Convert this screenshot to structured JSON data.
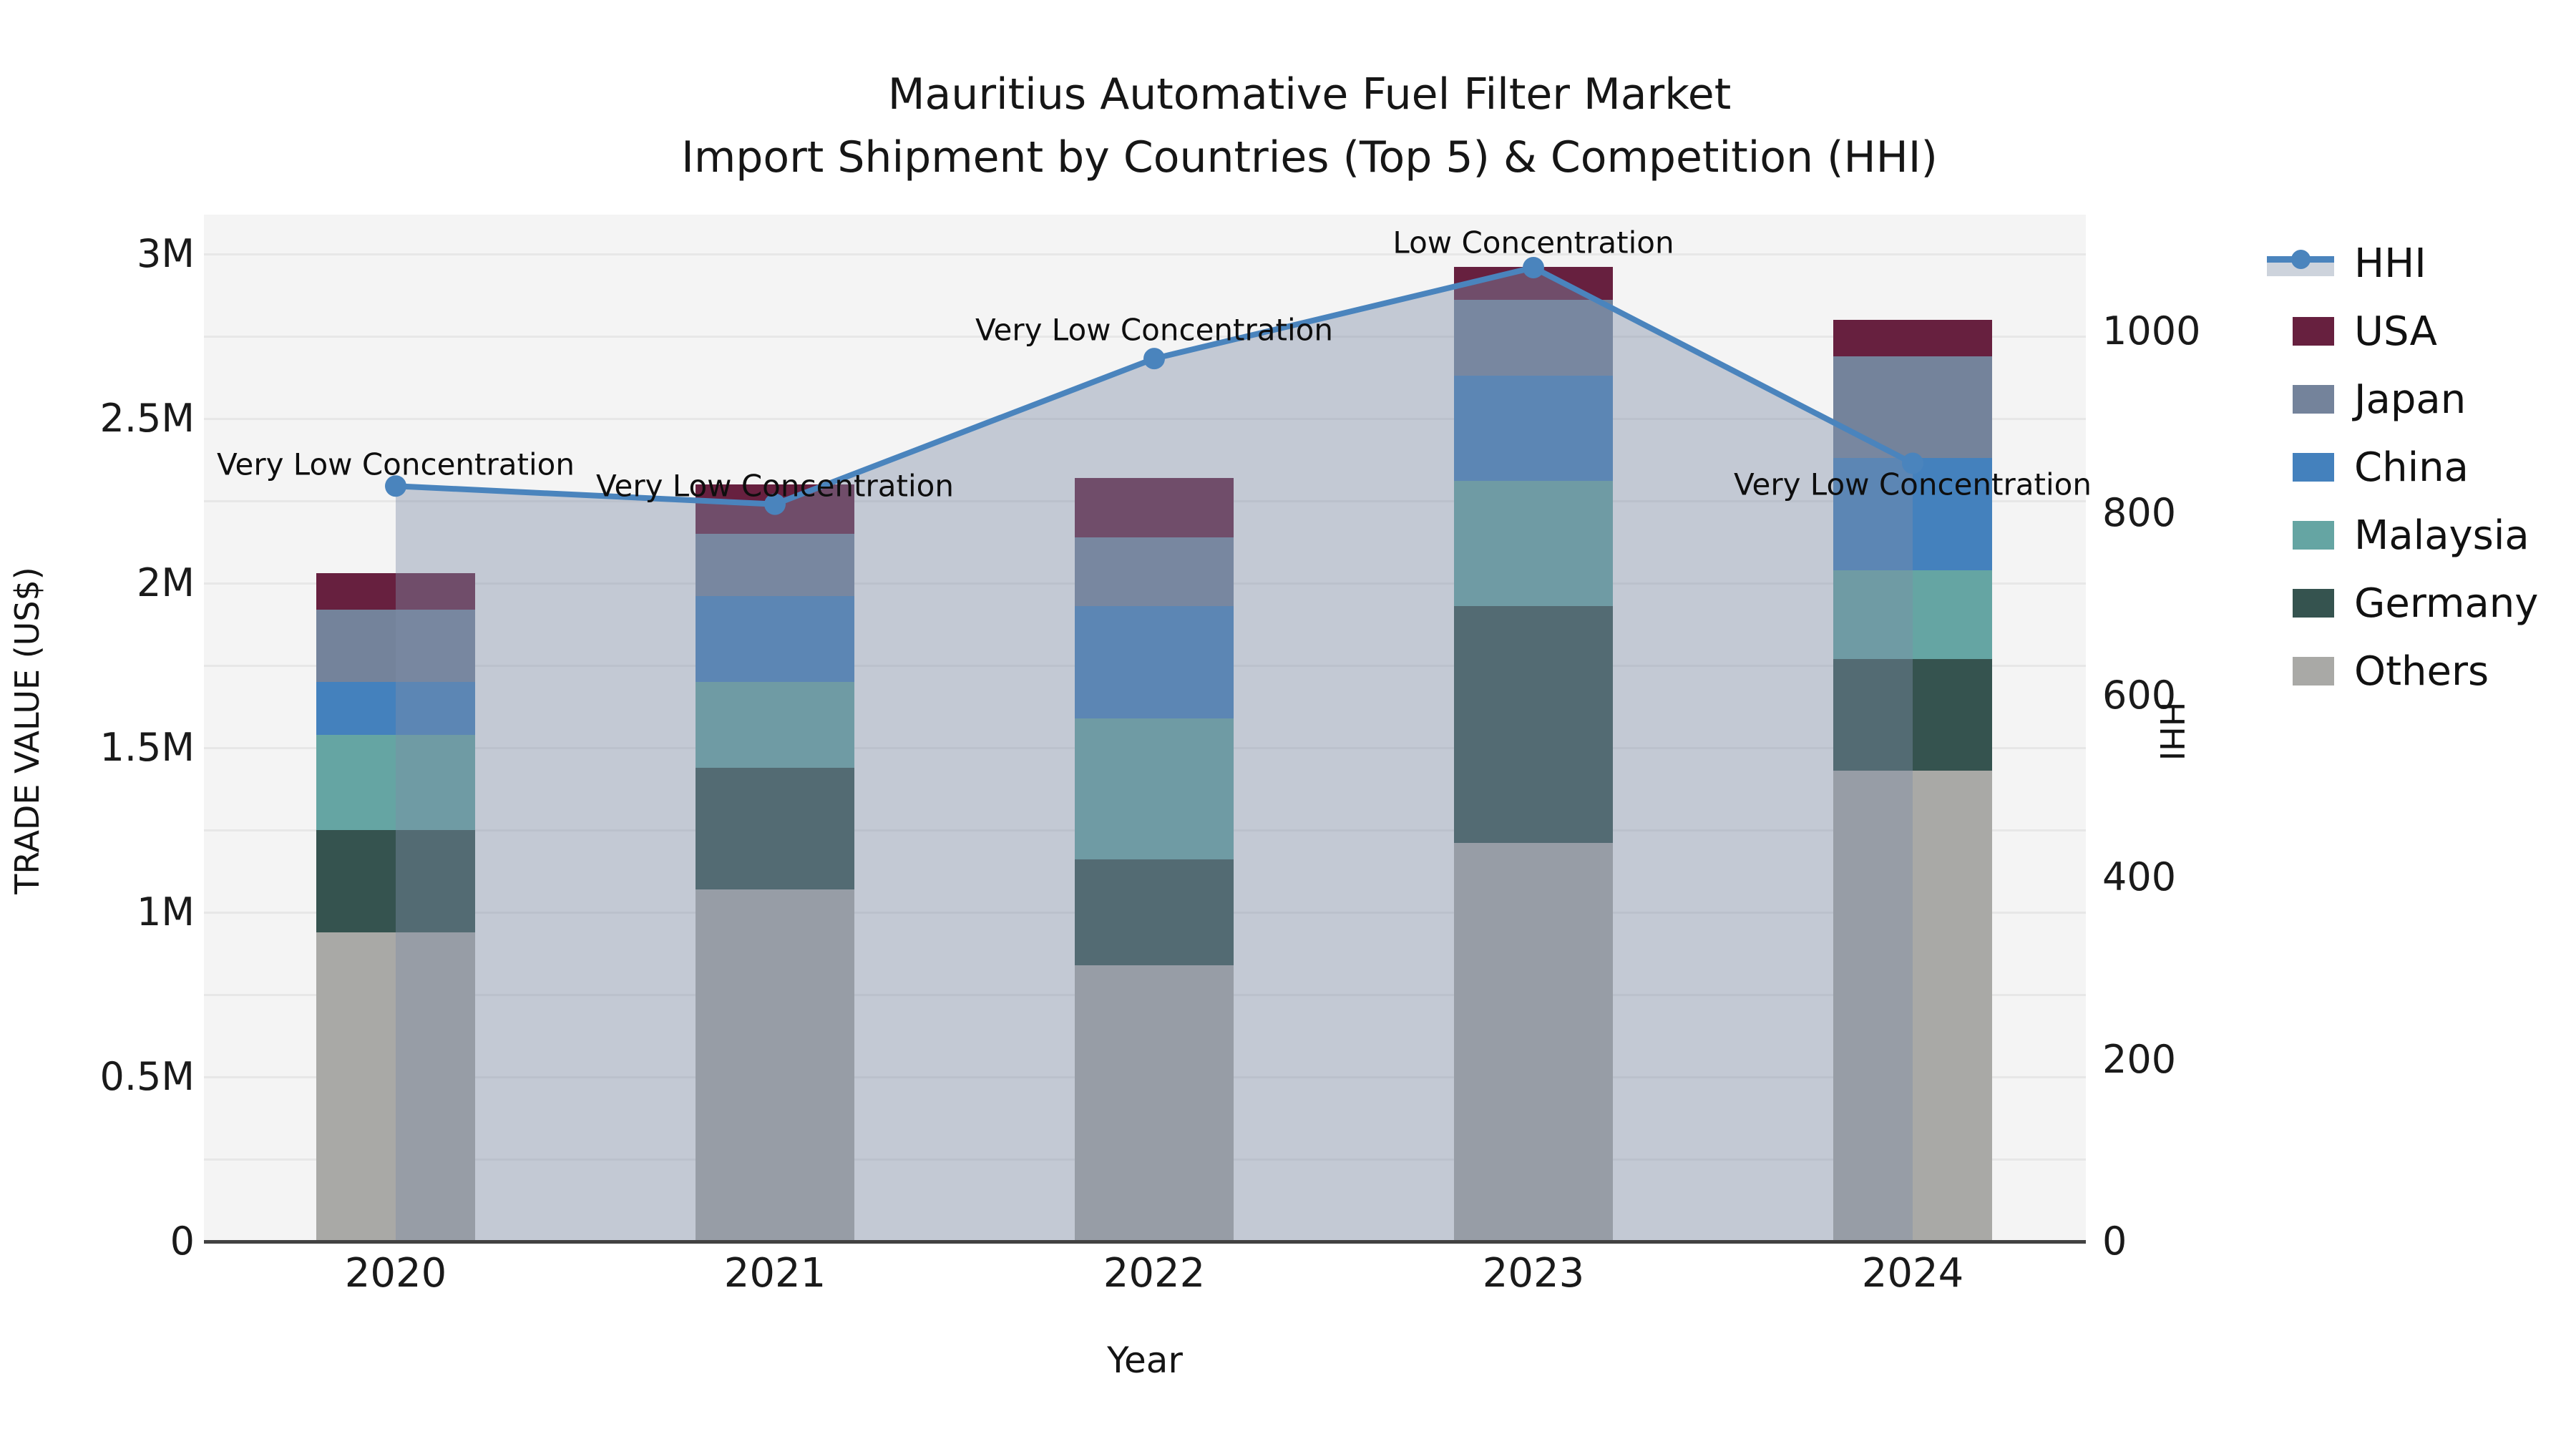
{
  "title": {
    "line1": "Mauritius Automative Fuel Filter Market",
    "line2": "Import Shipment by Countries (Top 5) & Competition (HHI)"
  },
  "axes": {
    "x": {
      "title": "Year"
    },
    "y_left": {
      "title": "TRADE VALUE (US$)",
      "tick_labels": [
        "0",
        "0.5M",
        "1M",
        "1.5M",
        "2M",
        "2.5M",
        "3M"
      ],
      "tick_values": [
        0,
        0.5,
        1,
        1.5,
        2,
        2.5,
        3
      ]
    },
    "y_right": {
      "title": "HHI",
      "tick_labels": [
        "0",
        "200",
        "400",
        "600",
        "800",
        "1000"
      ],
      "tick_values": [
        0,
        200,
        400,
        600,
        800,
        1000
      ]
    }
  },
  "chart_data": {
    "type": "stacked-bar+line",
    "title": "Mauritius Automative Fuel Filter Market — Import Shipment by Countries (Top 5) & Competition (HHI)",
    "xlabel": "Year",
    "ylabel_left": "TRADE VALUE (US$)",
    "ylabel_right": "HHI",
    "units_left": "million US$",
    "categories": [
      "2020",
      "2021",
      "2022",
      "2023",
      "2024"
    ],
    "bar_totals_musd": [
      2.03,
      2.3,
      2.32,
      2.96,
      2.8
    ],
    "bar_series": [
      {
        "name": "Others",
        "color": "#a9a9a6",
        "values": [
          0.94,
          1.07,
          0.84,
          1.21,
          1.43
        ]
      },
      {
        "name": "Germany",
        "color": "#35534f",
        "values": [
          0.31,
          0.37,
          0.32,
          0.72,
          0.34
        ]
      },
      {
        "name": "Malaysia",
        "color": "#65a5a3",
        "values": [
          0.29,
          0.26,
          0.43,
          0.38,
          0.27
        ]
      },
      {
        "name": "China",
        "color": "#4481bd",
        "values": [
          0.16,
          0.26,
          0.34,
          0.32,
          0.34
        ]
      },
      {
        "name": "Japan",
        "color": "#74839b",
        "values": [
          0.22,
          0.19,
          0.21,
          0.23,
          0.31
        ]
      },
      {
        "name": "USA",
        "color": "#67203f",
        "values": [
          0.11,
          0.15,
          0.18,
          0.1,
          0.11
        ]
      }
    ],
    "line_series": {
      "name": "HHI",
      "color": "#4a84bd",
      "area_fill": "rgba(127,140,166,0.42)",
      "values": [
        830,
        810,
        970,
        1070,
        855
      ]
    },
    "annotations": [
      "Very Low Concentration",
      "Very Low Concentration",
      "Very Low Concentration",
      "Low Concentration",
      "Very Low Concentration"
    ],
    "legend_order": [
      "HHI",
      "USA",
      "Japan",
      "China",
      "Malaysia",
      "Germany",
      "Others"
    ],
    "legend_position": "right",
    "grid": true,
    "plot_background": "#f4f4f4",
    "ylim_left": [
      0,
      3.12
    ],
    "ylim_right": [
      0,
      1128
    ]
  }
}
